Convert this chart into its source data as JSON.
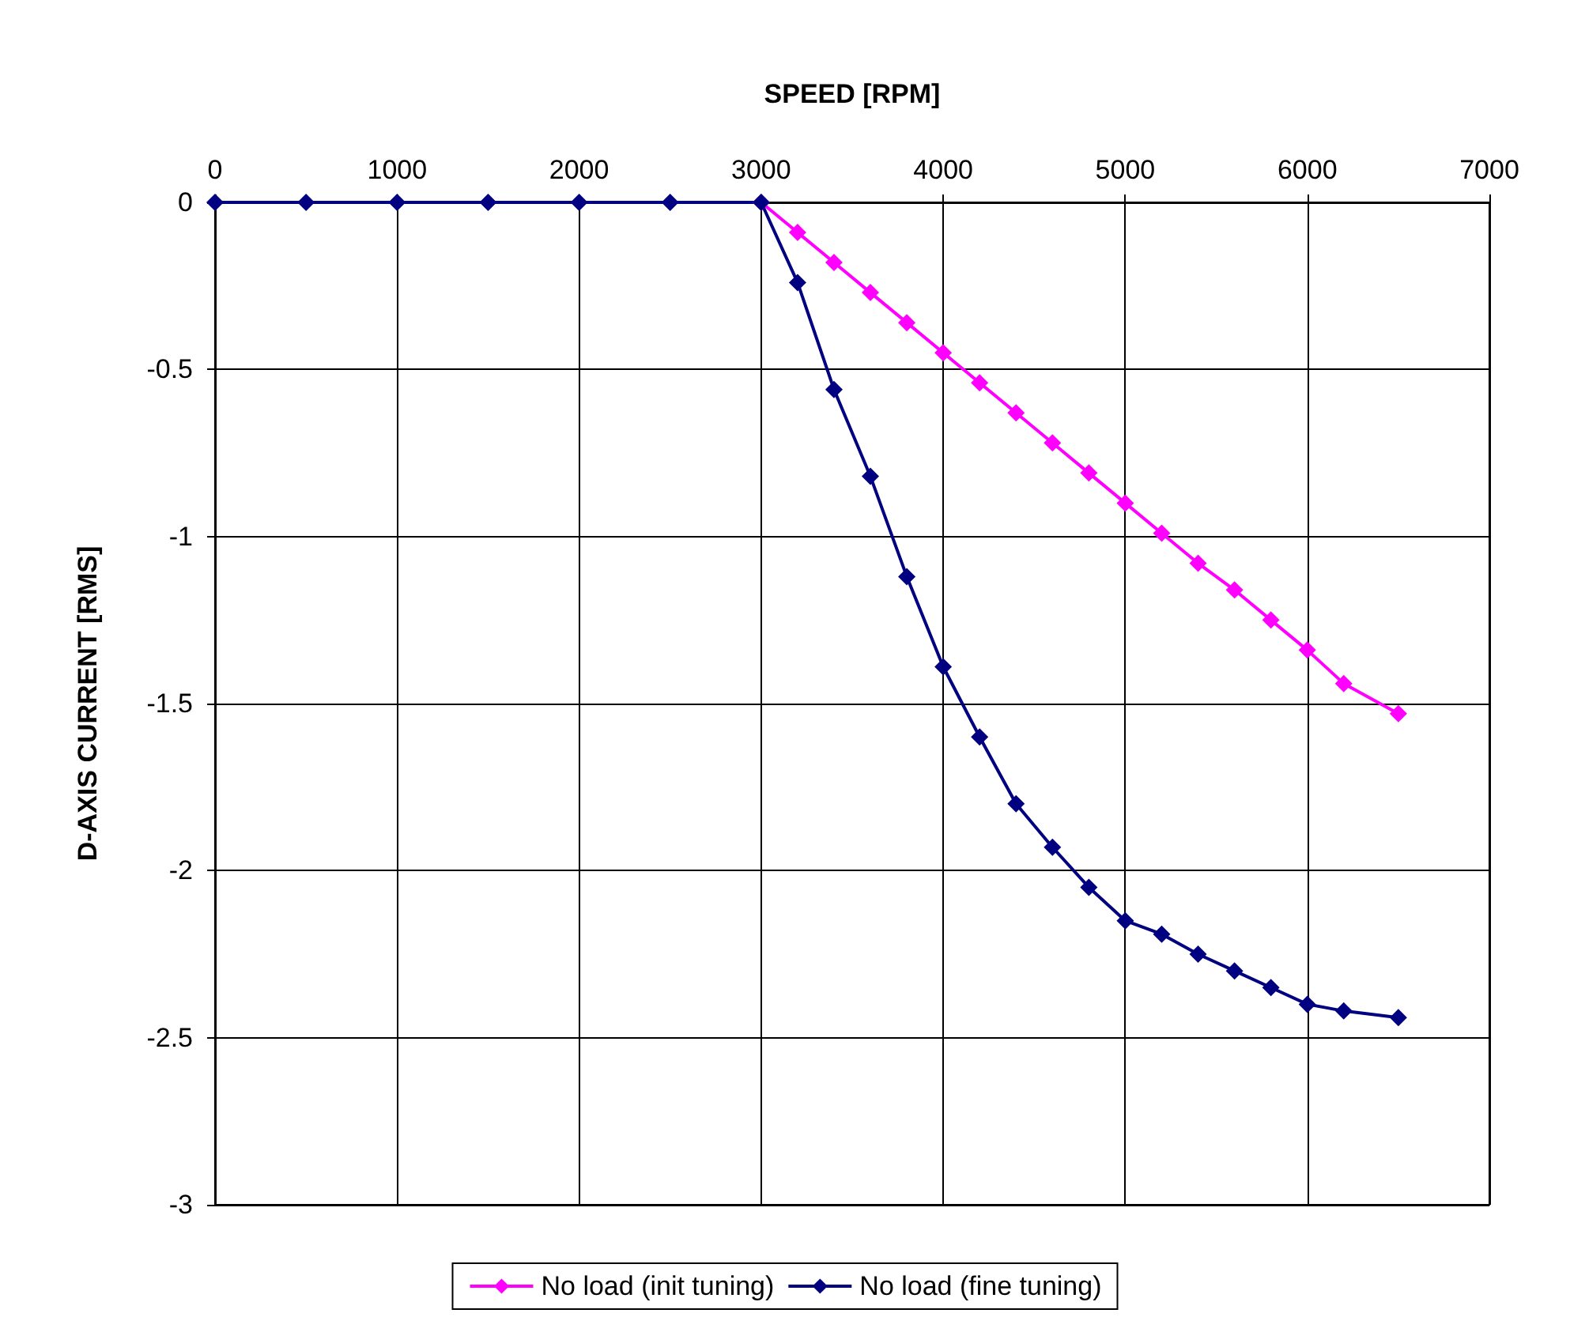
{
  "chart_data": {
    "type": "line",
    "xlabel": "SPEED [RPM]",
    "ylabel": "D-AXIS CURRENT [RMS]",
    "xlim": [
      0,
      7000
    ],
    "xticks": [
      0,
      1000,
      2000,
      3000,
      4000,
      5000,
      6000,
      7000
    ],
    "ylim": [
      -3,
      0
    ],
    "yticks": [
      -3,
      -2.5,
      -2,
      -1.5,
      -1,
      -0.5,
      0
    ],
    "grid": true,
    "legend": "bottom",
    "marker": "diamond",
    "line_style": "solid",
    "x": [
      0,
      500,
      1000,
      1500,
      2000,
      2500,
      3000,
      3200,
      3400,
      3600,
      3800,
      4000,
      4200,
      4400,
      4600,
      4800,
      5000,
      5200,
      5400,
      5600,
      5800,
      6000,
      6200,
      6500
    ],
    "series": [
      {
        "name": "No load (init tuning)",
        "color": "#ff00ff",
        "values": [
          null,
          null,
          null,
          null,
          null,
          null,
          0,
          -0.09,
          -0.18,
          -0.27,
          -0.36,
          -0.45,
          -0.54,
          -0.63,
          -0.72,
          -0.81,
          -0.9,
          -0.99,
          -1.08,
          -1.16,
          -1.25,
          -1.34,
          -1.44,
          -1.53
        ]
      },
      {
        "name": "No load (fine tuning)",
        "color": "#000080",
        "values": [
          0,
          0,
          0,
          0,
          0,
          0,
          0,
          -0.24,
          -0.56,
          -0.82,
          -1.12,
          -1.39,
          -1.6,
          -1.8,
          -1.93,
          -2.05,
          -2.15,
          -2.19,
          -2.25,
          -2.3,
          -2.35,
          -2.4,
          -2.42,
          -2.44
        ]
      }
    ]
  }
}
